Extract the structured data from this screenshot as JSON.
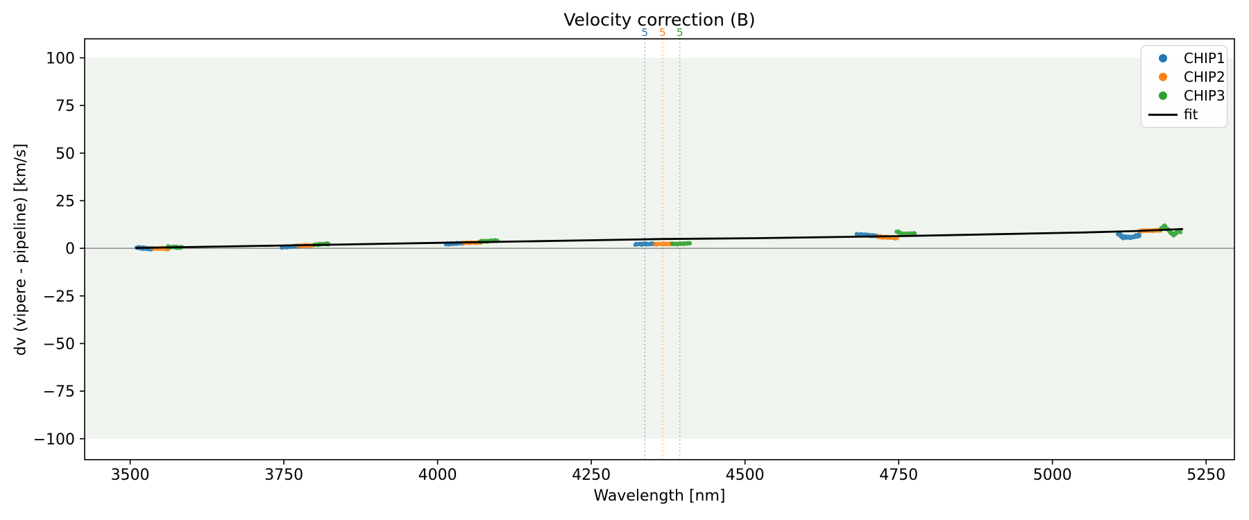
{
  "title": "Velocity correction (B)",
  "axes": {
    "xlabel": "Wavelength [nm]",
    "ylabel": "dv (vipere - pipeline) [km/s]"
  },
  "legend": {
    "items": [
      {
        "label": "CHIP1",
        "color": "#1f77b4",
        "marker": "dot"
      },
      {
        "label": "CHIP2",
        "color": "#ff7f0e",
        "marker": "dot"
      },
      {
        "label": "CHIP3",
        "color": "#2ca02c",
        "marker": "dot"
      },
      {
        "label": "fit",
        "color": "#000000",
        "marker": "line"
      }
    ]
  },
  "chart_data": {
    "type": "scatter",
    "title": "Velocity correction (B)",
    "xlabel": "Wavelength [nm]",
    "ylabel": "dv (vipere - pipeline) [km/s]",
    "xlim": [
      3426,
      5296
    ],
    "ylim": [
      -111,
      110
    ],
    "xticks": [
      3500,
      3750,
      4000,
      4250,
      4500,
      4750,
      5000,
      5250
    ],
    "yticks": [
      -100,
      -75,
      -50,
      -25,
      0,
      25,
      50,
      75,
      100
    ],
    "grid": false,
    "legend_position": "upper right",
    "background_band": {
      "ymin": -100,
      "ymax": 100,
      "color": "#eff4ee"
    },
    "zero_line": {
      "y": 0,
      "color": "#7a7a7a"
    },
    "order_markers": [
      {
        "x": 4337,
        "label": "5",
        "color": "#1f77b4"
      },
      {
        "x": 4366,
        "label": "5",
        "color": "#ff7f0e"
      },
      {
        "x": 4394,
        "label": "5",
        "color": "#2ca02c"
      }
    ],
    "series": [
      {
        "name": "CHIP1",
        "color": "#1f77b4",
        "clusters": [
          {
            "path": [
              [
                3510,
                0.3
              ],
              [
                3526,
                0.0
              ],
              [
                3536,
                -0.6
              ]
            ],
            "spread": 0.6
          },
          {
            "path": [
              [
                3746,
                0.5
              ],
              [
                3774,
                1.2
              ]
            ],
            "spread": 0.5
          },
          {
            "path": [
              [
                4013,
                2.3
              ],
              [
                4042,
                2.7
              ]
            ],
            "spread": 0.45
          },
          {
            "path": [
              [
                4321,
                2.1
              ],
              [
                4352,
                2.3
              ]
            ],
            "spread": 0.45
          },
          {
            "path": [
              [
                4681,
                7.3
              ],
              [
                4715,
                6.5
              ]
            ],
            "spread": 0.55
          },
          {
            "path": [
              [
                5106,
                7.8
              ],
              [
                5114,
                6.0
              ],
              [
                5128,
                5.6
              ],
              [
                5142,
                7.2
              ]
            ],
            "spread": 0.85
          }
        ]
      },
      {
        "name": "CHIP2",
        "color": "#ff7f0e",
        "clusters": [
          {
            "path": [
              [
                3536,
                0.0
              ],
              [
                3562,
                -0.3
              ]
            ],
            "spread": 0.55
          },
          {
            "path": [
              [
                3773,
                1.3
              ],
              [
                3798,
                1.6
              ]
            ],
            "spread": 0.5
          },
          {
            "path": [
              [
                4041,
                2.8
              ],
              [
                4071,
                3.1
              ]
            ],
            "spread": 0.45
          },
          {
            "path": [
              [
                4353,
                2.2
              ],
              [
                4381,
                2.3
              ]
            ],
            "spread": 0.45
          },
          {
            "path": [
              [
                4715,
                6.1
              ],
              [
                4748,
                5.4
              ]
            ],
            "spread": 0.55
          },
          {
            "path": [
              [
                5142,
                9.1
              ],
              [
                5176,
                9.5
              ]
            ],
            "spread": 0.55
          }
        ]
      },
      {
        "name": "CHIP3",
        "color": "#2ca02c",
        "clusters": [
          {
            "path": [
              [
                3561,
                0.7
              ],
              [
                3584,
                0.5
              ]
            ],
            "spread": 0.55
          },
          {
            "path": [
              [
                3799,
                1.9
              ],
              [
                3823,
                2.4
              ]
            ],
            "spread": 0.5
          },
          {
            "path": [
              [
                4069,
                3.6
              ],
              [
                4098,
                4.0
              ]
            ],
            "spread": 0.5
          },
          {
            "path": [
              [
                4381,
                2.3
              ],
              [
                4411,
                2.5
              ]
            ],
            "spread": 0.45
          },
          {
            "path": [
              [
                4746,
                8.8
              ],
              [
                4756,
                7.5
              ],
              [
                4777,
                7.6
              ]
            ],
            "spread": 0.55
          },
          {
            "path": [
              [
                5176,
                10.0
              ],
              [
                5182,
                11.6
              ],
              [
                5196,
                7.2
              ],
              [
                5209,
                9.2
              ]
            ],
            "spread": 0.8
          }
        ]
      }
    ],
    "fit": {
      "label": "fit",
      "color": "#000000",
      "points": [
        [
          3510,
          0.2
        ],
        [
          3755,
          1.5
        ],
        [
          4005,
          2.9
        ],
        [
          4370,
          4.9
        ],
        [
          4510,
          5.3
        ],
        [
          4755,
          6.4
        ],
        [
          5050,
          8.3
        ],
        [
          5130,
          9.0
        ],
        [
          5211,
          10.1
        ]
      ]
    }
  }
}
